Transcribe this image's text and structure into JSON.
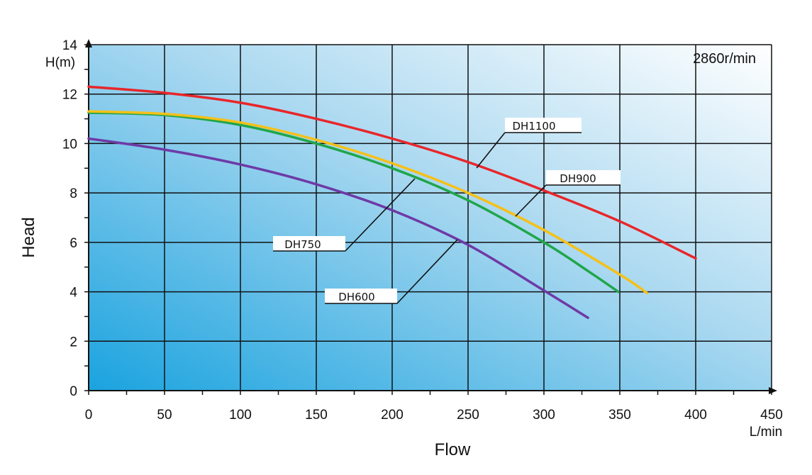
{
  "chart_data": {
    "type": "line",
    "title": "",
    "xlabel": "Flow",
    "ylabel": "Head",
    "x_unit": "L/min",
    "y_unit": "H(m)",
    "annotation": "2860r/min",
    "xlim": [
      0,
      450
    ],
    "ylim": [
      0,
      14
    ],
    "x_ticks": [
      0,
      50,
      100,
      150,
      200,
      250,
      300,
      350,
      400,
      450
    ],
    "y_ticks": [
      0,
      2,
      4,
      6,
      8,
      10,
      12,
      14
    ],
    "grid": true,
    "series": [
      {
        "name": "DH1100",
        "color": "#e8262a",
        "points": [
          [
            0,
            12.3
          ],
          [
            50,
            12.05
          ],
          [
            100,
            11.65
          ],
          [
            150,
            11.0
          ],
          [
            200,
            10.2
          ],
          [
            250,
            9.25
          ],
          [
            300,
            8.1
          ],
          [
            350,
            6.85
          ],
          [
            400,
            5.35
          ]
        ]
      },
      {
        "name": "DH900",
        "color": "#f5c018",
        "points": [
          [
            0,
            11.3
          ],
          [
            50,
            11.2
          ],
          [
            100,
            10.85
          ],
          [
            150,
            10.15
          ],
          [
            200,
            9.2
          ],
          [
            250,
            8.0
          ],
          [
            300,
            6.5
          ],
          [
            350,
            4.7
          ],
          [
            368,
            3.95
          ]
        ]
      },
      {
        "name": "DH750",
        "color": "#1fa64a",
        "points": [
          [
            0,
            11.25
          ],
          [
            50,
            11.15
          ],
          [
            100,
            10.75
          ],
          [
            150,
            10.0
          ],
          [
            200,
            9.0
          ],
          [
            250,
            7.7
          ],
          [
            300,
            6.0
          ],
          [
            330,
            4.8
          ],
          [
            349,
            4.0
          ]
        ]
      },
      {
        "name": "DH600",
        "color": "#6e3aa6",
        "points": [
          [
            0,
            10.2
          ],
          [
            50,
            9.75
          ],
          [
            100,
            9.15
          ],
          [
            150,
            8.35
          ],
          [
            200,
            7.3
          ],
          [
            250,
            5.9
          ],
          [
            300,
            4.05
          ],
          [
            329,
            2.95
          ]
        ]
      }
    ],
    "callouts": [
      {
        "series": "DH1100",
        "text": "DH1100"
      },
      {
        "series": "DH900",
        "text": "DH900"
      },
      {
        "series": "DH750",
        "text": "DH750"
      },
      {
        "series": "DH600",
        "text": "DH600"
      }
    ]
  }
}
